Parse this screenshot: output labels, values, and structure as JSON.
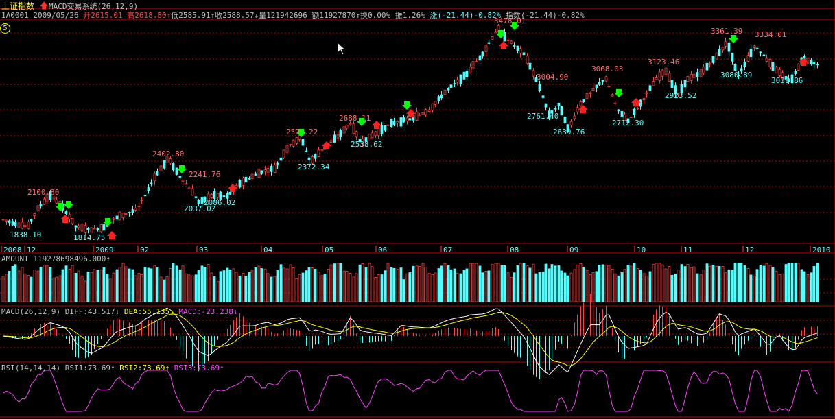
{
  "header": {
    "title": "上证指数",
    "system_name": "MACD交易系统(26,12,9)",
    "quote": {
      "code": "1A0001",
      "date": "2009/05/26",
      "open_label": "开",
      "open": "2615.01",
      "high_label": "高",
      "high": "2618.80",
      "low_label": "低",
      "low": "2585.91",
      "close_label": "收",
      "close": "2588.57",
      "volume_label": "量",
      "volume": "121942696",
      "turnover_label": "额",
      "turnover": "11927870",
      "exchange_label": "换",
      "exchange": "0.00%",
      "amplitude_label": "振",
      "amplitude": "1.26%",
      "change_label": "涨",
      "change": "(-21.44)-0.82%",
      "index_label": "指数",
      "index": "(-21.44)-0.82%"
    },
    "badge": "5"
  },
  "colors": {
    "up": "#ff4040",
    "down": "#54ffff",
    "grid": "#c00000",
    "diff": "#ffffff",
    "dea": "#ffff00",
    "rsi": "#ff40ff"
  },
  "price_annotations": [
    "2100.80",
    "1838.10",
    "1814.75",
    "2402.80",
    "2241.76",
    "2037.02",
    "2086.02",
    "2577.22",
    "2372.34",
    "2688.11",
    "2538.62",
    "3478.01",
    "3004.90",
    "2761.40",
    "2639.76",
    "3068.03",
    "2712.30",
    "3123.46",
    "2923.52",
    "3361.39",
    "3334.01",
    "3080.89",
    "3039.86"
  ],
  "time_axis": [
    "2008",
    "12",
    "2009",
    "02",
    "03",
    "04",
    "05",
    "06",
    "07",
    "08",
    "09",
    "10",
    "11",
    "12",
    "2010"
  ],
  "amount_panel": {
    "label": "AMOUNT",
    "value": "119278698496.000",
    "arrow": "↑"
  },
  "macd_panel": {
    "label": "MACD(26,12,9)",
    "diff_label": "DIFF:",
    "diff": "43.517",
    "diff_arrow": "↓",
    "dea_label": "DEA:",
    "dea": "55.135",
    "dea_arrow": "↓",
    "macd_label": "MACD:",
    "macd": "-23.238",
    "macd_arrow": "↓"
  },
  "rsi_panel": {
    "label": "RSI(14,14,14)",
    "rsi1_label": "RSI1:",
    "rsi1": "73.69",
    "rsi1_arrow": "↑",
    "rsi2_label": "RSI2:",
    "rsi2": "73.69",
    "rsi2_arrow": "↑",
    "rsi3_label": "RSI3:",
    "rsi3": "73.69",
    "rsi3_arrow": "↑"
  }
}
